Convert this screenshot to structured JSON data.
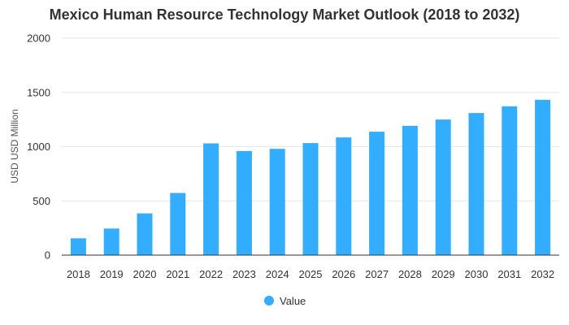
{
  "chart_data": {
    "type": "bar",
    "title": "Mexico Human Resource Technology Market Outlook (2018 to 2032)",
    "xlabel": "",
    "ylabel": "USD USD Million",
    "categories": [
      "2018",
      "2019",
      "2020",
      "2021",
      "2022",
      "2023",
      "2024",
      "2025",
      "2026",
      "2027",
      "2028",
      "2029",
      "2030",
      "2031",
      "2032"
    ],
    "series": [
      {
        "name": "Value",
        "values": [
          155,
          245,
          385,
          573,
          1030,
          960,
          980,
          1033,
          1085,
          1138,
          1192,
          1250,
          1310,
          1372,
          1432
        ]
      }
    ],
    "ylim": [
      0,
      2000
    ],
    "yticks": [
      0,
      500,
      1000,
      1500,
      2000
    ],
    "grid": true,
    "legend_position": "bottom-center",
    "colors": {
      "bar": "#33adff",
      "grid": "#e6e6e6",
      "axis": "#333333"
    }
  }
}
